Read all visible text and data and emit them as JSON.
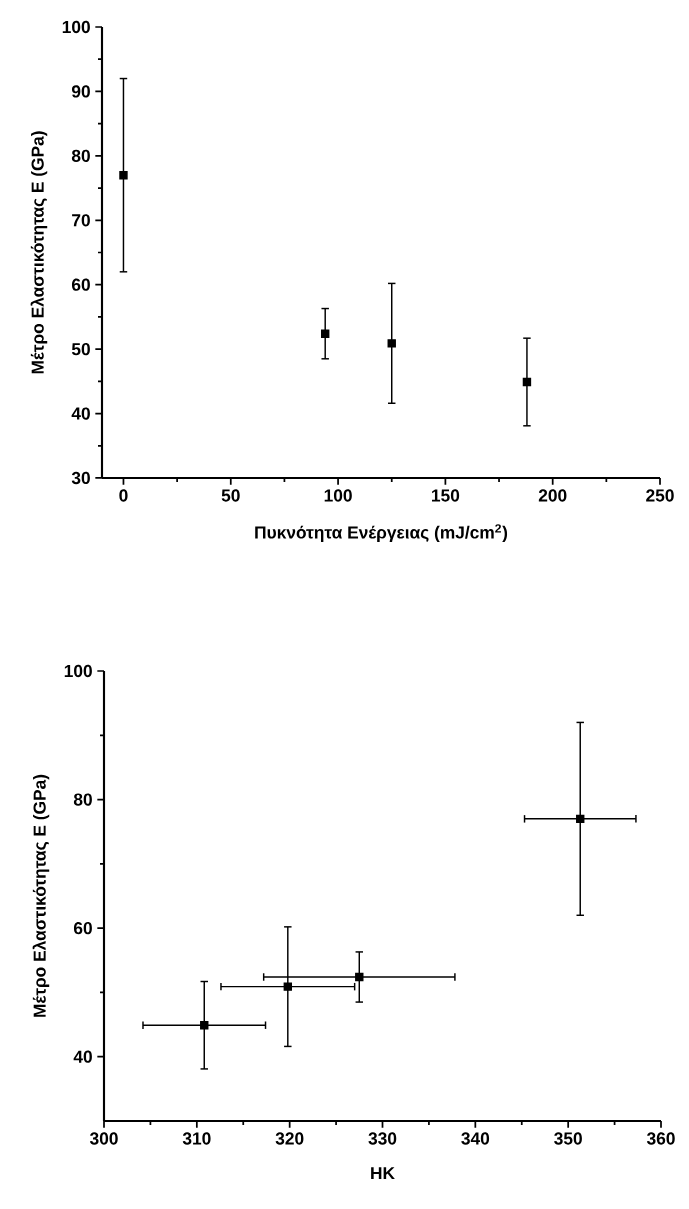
{
  "chart_data": [
    {
      "type": "scatter",
      "xlabel": "Πυκνότητα Ενέργειας (mJ/cm$^{2}$)",
      "ylabel": "Μέτρο Ελαστικότητας E (GPa)",
      "xlim": [
        -10,
        250
      ],
      "ylim": [
        30,
        100
      ],
      "xticks": [
        0,
        50,
        100,
        150,
        200,
        250
      ],
      "yticks": [
        30,
        40,
        50,
        60,
        70,
        80,
        90,
        100
      ],
      "marker": "square",
      "series": [
        {
          "color": "#000000",
          "x": [
            0,
            94,
            125,
            188
          ],
          "values": [
            77,
            52.4,
            50.9,
            44.9
          ],
          "errors": [
            15,
            3.9,
            9.3,
            6.8
          ]
        }
      ]
    },
    {
      "type": "scatter",
      "xlabel": "HK",
      "ylabel": "Μέτρο Ελαστικότητας E (GPa)",
      "xlim": [
        300,
        360
      ],
      "ylim": [
        30,
        100
      ],
      "xticks": [
        300,
        310,
        320,
        330,
        340,
        350,
        360
      ],
      "yticks": [
        40,
        60,
        80,
        100
      ],
      "marker": "square",
      "series": [
        {
          "color": "#000000",
          "x": [
            351.3,
            327.5,
            319.8,
            310.8
          ],
          "values": [
            77,
            52.4,
            50.9,
            44.9
          ],
          "errors": [
            15,
            3.9,
            9.3,
            6.8
          ],
          "xerrors": [
            6,
            10.3,
            7.2,
            6.6
          ]
        }
      ]
    }
  ]
}
